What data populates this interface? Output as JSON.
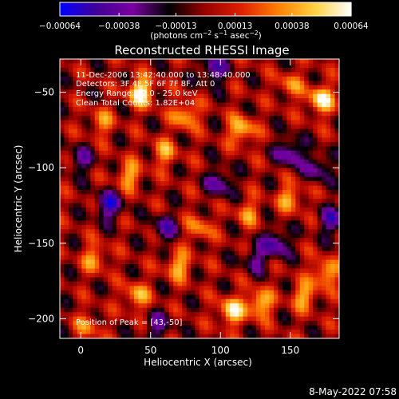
{
  "chart_data": {
    "type": "heatmap",
    "title": "Reconstructed RHESSI Image",
    "xlabel": "Heliocentric X (arcsec)",
    "ylabel": "Heliocentric Y (arcsec)",
    "xlim": [
      -15,
      185
    ],
    "ylim": [
      -213,
      -28
    ],
    "x_ticks": [
      0,
      50,
      100,
      150
    ],
    "x_tick_labels": [
      "0",
      "50",
      "100",
      "150"
    ],
    "y_ticks": [
      -50,
      -100,
      -150,
      -200
    ],
    "y_tick_labels": [
      "−50",
      "−100",
      "−150",
      "−200"
    ],
    "colorbar": {
      "range": [
        -0.00064,
        0.00064
      ],
      "ticks": [
        -0.00064,
        -0.00038,
        -0.00013,
        0.00013,
        0.00038,
        0.00064
      ],
      "tick_labels": [
        "−0.00064",
        "−0.00038",
        "−0.00013",
        "0.00013",
        "0.00038",
        "0.00064"
      ],
      "unit_parts": [
        "(photons cm",
        "−2",
        " s",
        "−1",
        " asec",
        "−2",
        ")"
      ],
      "colors": [
        "#0000ff",
        "#40009a",
        "#7a00a0",
        "#000000",
        "#9a0000",
        "#e02000",
        "#ff8000",
        "#ffd040",
        "#ffffff"
      ]
    },
    "annotations": [
      "11-Dec-2006 13:42:40.000 to 13:48:40.000",
      "Detectors: 3F 4F 5F 6F 7F 8F, Att 0",
      "Energy Range: 12.0 - 25.0 keV",
      "Clean      Total Counts: 1.82E+04"
    ],
    "peak_label": "Position of Peak = [43,-50]",
    "peaks": [
      {
        "x": 43,
        "y": -50,
        "v": 0.00064
      },
      {
        "x": 172,
        "y": -55,
        "v": 0.00058
      },
      {
        "x": 108,
        "y": -195,
        "v": 0.00055
      },
      {
        "x": 128,
        "y": -190,
        "v": 0.0005
      },
      {
        "x": 75,
        "y": -65,
        "v": 0.00045
      },
      {
        "x": 115,
        "y": -75,
        "v": 0.00048
      },
      {
        "x": 70,
        "y": -165,
        "v": 0.00042
      },
      {
        "x": 40,
        "y": -185,
        "v": 0.0004
      },
      {
        "x": 35,
        "y": -105,
        "v": 0.0004
      },
      {
        "x": 60,
        "y": -90,
        "v": 0.00035
      },
      {
        "x": 150,
        "y": -120,
        "v": 0.00038
      },
      {
        "x": 175,
        "y": -170,
        "v": 0.00045
      },
      {
        "x": 160,
        "y": -185,
        "v": 0.0004
      },
      {
        "x": 10,
        "y": -160,
        "v": 0.00035
      },
      {
        "x": 15,
        "y": -70,
        "v": 0.0003
      },
      {
        "x": 120,
        "y": -130,
        "v": 0.0003
      },
      {
        "x": 85,
        "y": -140,
        "v": 0.00032
      },
      {
        "x": 150,
        "y": -45,
        "v": 0.0003
      },
      {
        "x": 5,
        "y": -205,
        "v": 0.00028
      }
    ],
    "troughs": [
      {
        "x": 20,
        "y": -125,
        "v": -0.0005
      },
      {
        "x": 95,
        "y": -35,
        "v": -0.00045
      },
      {
        "x": 150,
        "y": -90,
        "v": -0.00045
      },
      {
        "x": 100,
        "y": -110,
        "v": -0.0004
      },
      {
        "x": 60,
        "y": -140,
        "v": -0.00035
      },
      {
        "x": 140,
        "y": -150,
        "v": -0.00045
      },
      {
        "x": 180,
        "y": -135,
        "v": -0.0004
      },
      {
        "x": 125,
        "y": -160,
        "v": -0.0003
      },
      {
        "x": 0,
        "y": -95,
        "v": -0.0003
      },
      {
        "x": 55,
        "y": -205,
        "v": -0.0003
      },
      {
        "x": 170,
        "y": -100,
        "v": -0.00035
      }
    ]
  },
  "timestamp": "8-May-2022 07:58"
}
